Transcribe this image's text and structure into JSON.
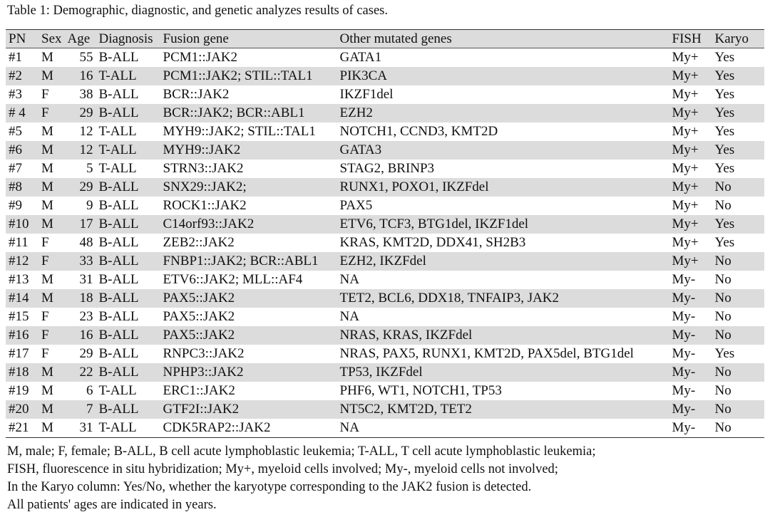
{
  "caption": "Table 1: Demographic, diagnostic, and genetic analyzes results of cases.",
  "headers": [
    "PN",
    "Sex",
    "Age",
    "Diagnosis",
    "Fusion gene",
    "Other mutated genes",
    "FISH",
    "Karyo"
  ],
  "rows": [
    [
      "#1",
      "M",
      "55",
      "B-ALL",
      "PCM1::JAK2",
      "GATA1",
      "My+",
      "Yes"
    ],
    [
      "#2",
      "M",
      "16",
      "T-ALL",
      "PCM1::JAK2; STIL::TAL1",
      "PIK3CA",
      "My+",
      "Yes"
    ],
    [
      "#3",
      "F",
      "38",
      "B-ALL",
      "BCR::JAK2",
      "IKZF1del",
      "My+",
      "Yes"
    ],
    [
      "# 4",
      "F",
      "29",
      "B-ALL",
      "BCR::JAK2; BCR::ABL1",
      "EZH2",
      "My+",
      "Yes"
    ],
    [
      "#5",
      "M",
      "12",
      "T-ALL",
      "MYH9::JAK2; STIL::TAL1",
      "NOTCH1, CCND3, KMT2D",
      "My+",
      "Yes"
    ],
    [
      "#6",
      "M",
      "12",
      "T-ALL",
      "MYH9::JAK2",
      "GATA3",
      "My+",
      "Yes"
    ],
    [
      "#7",
      "M",
      "5",
      "T-ALL",
      "STRN3::JAK2",
      "STAG2, BRINP3",
      "My+",
      "Yes"
    ],
    [
      "#8",
      "M",
      "29",
      "B-ALL",
      "SNX29::JAK2;",
      "RUNX1, POXO1, IKZFdel",
      "My+",
      "No"
    ],
    [
      "#9",
      "M",
      "9",
      "B-ALL",
      "ROCK1::JAK2",
      "PAX5",
      "My+",
      "No"
    ],
    [
      "#10",
      "M",
      "17",
      "B-ALL",
      "C14orf93::JAK2",
      "ETV6, TCF3, BTG1del, IKZF1del",
      "My+",
      "Yes"
    ],
    [
      "#11",
      "F",
      "48",
      "B-ALL",
      "ZEB2::JAK2",
      "KRAS, KMT2D, DDX41, SH2B3",
      "My+",
      "Yes"
    ],
    [
      "#12",
      "F",
      "33",
      "B-ALL",
      "FNBP1::JAK2; BCR::ABL1",
      "EZH2, IKZFdel",
      "My+",
      "No"
    ],
    [
      "#13",
      "M",
      "31",
      "B-ALL",
      "ETV6::JAK2; MLL::AF4",
      "NA",
      "My-",
      "No"
    ],
    [
      "#14",
      "M",
      "18",
      "B-ALL",
      "PAX5::JAK2",
      "TET2, BCL6, DDX18, TNFAIP3, JAK2",
      "My-",
      "No"
    ],
    [
      "#15",
      "F",
      "23",
      "B-ALL",
      "PAX5::JAK2",
      "NA",
      "My-",
      "No"
    ],
    [
      "#16",
      "F",
      "16",
      "B-ALL",
      "PAX5::JAK2",
      "NRAS, KRAS, IKZFdel",
      "My-",
      "No"
    ],
    [
      "#17",
      "F",
      "29",
      "B-ALL",
      "RNPC3::JAK2",
      "NRAS, PAX5, RUNX1, KMT2D, PAX5del, BTG1del",
      "My-",
      "Yes"
    ],
    [
      "#18",
      "M",
      "22",
      "B-ALL",
      "NPHP3::JAK2",
      "TP53, IKZFdel",
      "My-",
      "No"
    ],
    [
      "#19",
      "M",
      "6",
      "T-ALL",
      "ERC1::JAK2",
      "PHF6, WT1, NOTCH1, TP53",
      "My-",
      "No"
    ],
    [
      "#20",
      "M",
      "7",
      "B-ALL",
      "GTF2I::JAK2",
      "NT5C2, KMT2D, TET2",
      "My-",
      "No"
    ],
    [
      "#21",
      "M",
      "31",
      "T-ALL",
      "CDK5RAP2::JAK2",
      "NA",
      "My-",
      "No"
    ]
  ],
  "notes": [
    "M, male; F, female; B-ALL, B cell acute lymphoblastic leukemia; T-ALL, T cell acute lymphoblastic leukemia;",
    "FISH, fluorescence in situ hybridization; My+, myeloid cells involved; My-, myeloid cells not involved;",
    "In the Karyo column: Yes/No, whether the karyotype corresponding to the JAK2 fusion is detected.",
    "All patients' ages are indicated in years."
  ]
}
